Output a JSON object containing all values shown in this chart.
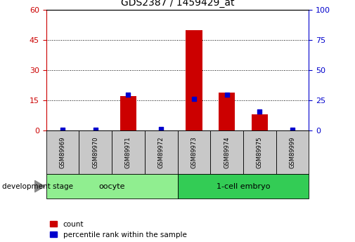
{
  "title": "GDS2387 / 1459429_at",
  "samples": [
    "GSM89969",
    "GSM89970",
    "GSM89971",
    "GSM89972",
    "GSM89973",
    "GSM89974",
    "GSM89975",
    "GSM89999"
  ],
  "count_values": [
    0,
    0,
    17,
    0,
    50,
    19,
    8,
    0
  ],
  "percentile_values": [
    1,
    0.7,
    30,
    1.2,
    26,
    30,
    16,
    0.8
  ],
  "groups": [
    {
      "label": "oocyte",
      "start": 0,
      "end": 4,
      "color": "#90ee90"
    },
    {
      "label": "1-cell embryo",
      "start": 4,
      "end": 8,
      "color": "#33cc55"
    }
  ],
  "bar_color_red": "#cc0000",
  "dot_color_blue": "#0000cc",
  "left_axis_color": "#cc0000",
  "right_axis_color": "#0000cc",
  "ylim_left": [
    0,
    60
  ],
  "ylim_right": [
    0,
    100
  ],
  "yticks_left": [
    0,
    15,
    30,
    45,
    60
  ],
  "yticks_right": [
    0,
    25,
    50,
    75,
    100
  ],
  "legend_count_label": "count",
  "legend_percentile_label": "percentile rank within the sample",
  "stage_label": "development stage",
  "bar_width": 0.5,
  "label_gray": "#c8c8c8",
  "oocyte_green": "#b8f0b8",
  "embryo_green": "#44dd66"
}
